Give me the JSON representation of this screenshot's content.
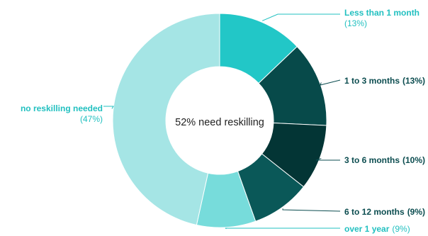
{
  "chart_data": {
    "type": "pie",
    "donut": true,
    "center_label": "52% need reskilling",
    "slices": [
      {
        "label": "Less than 1 month",
        "value": 13,
        "percent_label": "(13%)",
        "color": "#22c7c7"
      },
      {
        "label": "1 to 3 months",
        "value": 13,
        "percent_label": "(13%)",
        "color": "#074a4a"
      },
      {
        "label": "3 to 6 months",
        "value": 10,
        "percent_label": "(10%)",
        "color": "#033535"
      },
      {
        "label": "6 to 12 months",
        "value": 9,
        "percent_label": "(9%)",
        "color": "#0a5858"
      },
      {
        "label": "over 1 year",
        "value": 9,
        "percent_label": "(9%)",
        "color": "#77dcdb"
      },
      {
        "label": "no reskilling needed",
        "value": 47,
        "percent_label": "(47%)",
        "color": "#a5e5e5"
      }
    ],
    "legend": "none",
    "label_colors": {
      "light": "#22c0c0",
      "dark": "#0c4d50"
    }
  }
}
